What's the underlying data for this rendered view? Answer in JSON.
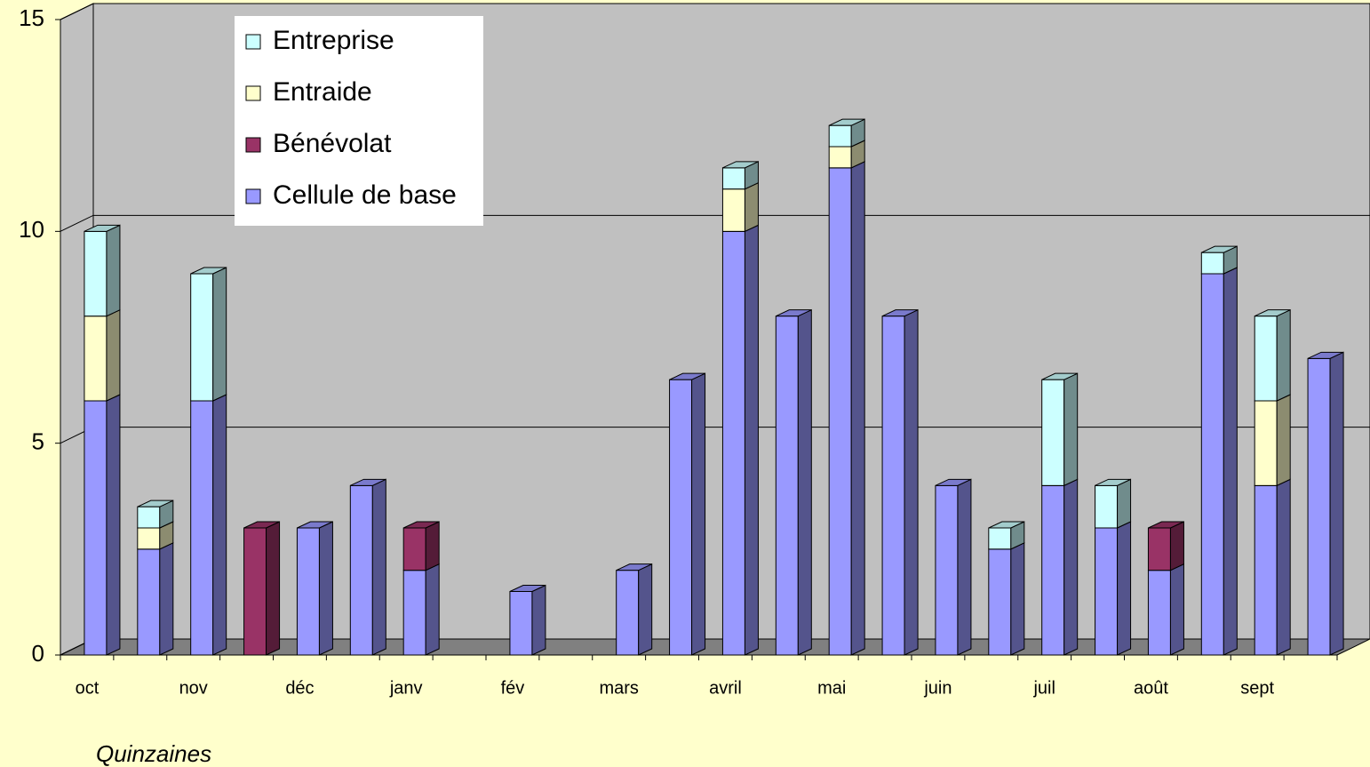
{
  "chart_data": {
    "type": "bar3d_stacked",
    "xlabel": "Quinzaines",
    "categories": [
      "oct",
      null,
      "nov",
      null,
      "déc",
      null,
      "janv",
      null,
      "fév",
      null,
      "mars",
      null,
      "avril",
      null,
      "mai",
      null,
      "juin",
      null,
      "juil",
      null,
      "août",
      null,
      "sept",
      null
    ],
    "series": [
      {
        "name": "Cellule de base",
        "color": "#9999ff",
        "values": [
          6,
          2.5,
          6,
          0,
          3,
          4,
          2,
          0,
          1.5,
          0,
          2,
          6.5,
          10,
          8,
          11.5,
          8,
          4,
          2.5,
          4,
          3,
          2,
          9,
          4,
          7
        ]
      },
      {
        "name": "Bénévolat",
        "color": "#993366",
        "values": [
          0,
          0,
          0,
          3,
          0,
          0,
          1,
          0,
          0,
          0,
          0,
          0,
          0,
          0,
          0,
          0,
          0,
          0,
          0,
          0,
          1,
          0,
          0,
          0
        ]
      },
      {
        "name": "Entraide",
        "color": "#ffffcc",
        "values": [
          2,
          0.5,
          0,
          0,
          0,
          0,
          0,
          0,
          0,
          0,
          0,
          0,
          1,
          0,
          0.5,
          0,
          0,
          0,
          0,
          0,
          0,
          0,
          2,
          0
        ]
      },
      {
        "name": "Entreprise",
        "color": "#ccffff",
        "values": [
          2,
          0.5,
          3,
          0,
          0,
          0,
          0,
          0,
          0,
          0,
          0,
          0,
          0.5,
          0,
          0.5,
          0,
          0,
          0.5,
          2.5,
          1,
          0,
          0.5,
          2,
          0
        ]
      }
    ],
    "ylim": [
      0,
      15
    ],
    "yticks": [
      0,
      5,
      10,
      15
    ],
    "grid": true,
    "wall_color": "#c0c0c0",
    "floor_color": "#808080"
  }
}
